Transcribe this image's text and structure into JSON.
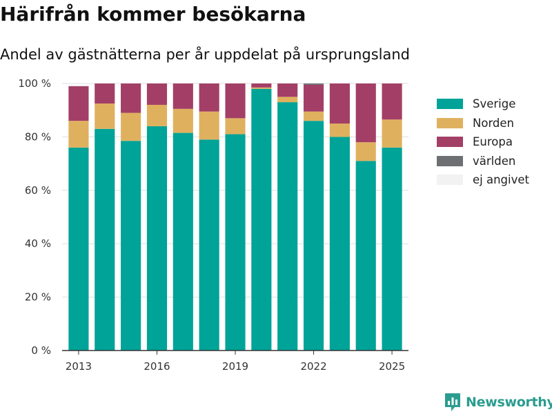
{
  "header": {
    "title": "Härifrån kommer besökarna",
    "subtitle": "Andel av gästnätterna per år uppdelat på ursprungsland"
  },
  "brand": {
    "name": "Newsworthy",
    "logo_icon": "bar-chart-icon",
    "color": "#2a9d8f"
  },
  "chart_data": {
    "type": "bar",
    "stacked": true,
    "categories": [
      2013,
      2014,
      2015,
      2016,
      2017,
      2018,
      2019,
      2020,
      2021,
      2022,
      2023,
      2024,
      2025
    ],
    "series": [
      {
        "name": "Sverige",
        "color": "#00a398",
        "values": [
          76,
          83,
          78.5,
          84,
          81.5,
          79,
          81,
          98,
          93,
          86,
          80,
          71,
          76
        ]
      },
      {
        "name": "Norden",
        "color": "#dfb15f",
        "values": [
          10,
          9.5,
          10.5,
          8,
          9,
          10.5,
          6,
          0.5,
          2,
          3.5,
          5,
          7,
          10.5
        ]
      },
      {
        "name": "Europa",
        "color": "#a33f66",
        "values": [
          13,
          7.5,
          11,
          8,
          9.5,
          10.5,
          13,
          1.5,
          5,
          10,
          15,
          22,
          13.5
        ]
      },
      {
        "name": "världen",
        "color": "#6d6f73",
        "values": [
          0,
          0,
          0,
          0,
          0,
          0,
          0,
          0,
          0,
          0.5,
          0,
          0,
          0
        ]
      },
      {
        "name": "ej angivet",
        "color": "#f2f2f2",
        "values": [
          0.5,
          0,
          0,
          0,
          0,
          0,
          0,
          0,
          0,
          0,
          0,
          0,
          0
        ]
      }
    ],
    "x_ticks": [
      2013,
      2016,
      2019,
      2022,
      2025
    ],
    "y_ticks": [
      0,
      20,
      40,
      60,
      80,
      100
    ],
    "y_tick_labels": [
      "0 %",
      "20 %",
      "40 %",
      "60 %",
      "80 %",
      "100 %"
    ],
    "ylim": [
      0,
      100
    ],
    "grid": true,
    "legend_position": "right"
  }
}
